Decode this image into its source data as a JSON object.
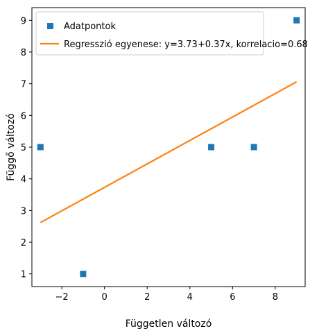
{
  "chart_data": {
    "type": "scatter",
    "title": "",
    "xlabel": "Független változó",
    "ylabel": "Függő változó",
    "xlim": [
      -3.4,
      9.4
    ],
    "ylim": [
      0.6,
      9.4
    ],
    "grid": false,
    "legend_placement": "top-left",
    "x_ticks": [
      {
        "value": -2,
        "label": "−2"
      },
      {
        "value": 0,
        "label": "0"
      },
      {
        "value": 2,
        "label": "2"
      },
      {
        "value": 4,
        "label": "4"
      },
      {
        "value": 6,
        "label": "6"
      },
      {
        "value": 8,
        "label": "8"
      }
    ],
    "y_ticks": [
      {
        "value": 1,
        "label": "1"
      },
      {
        "value": 2,
        "label": "2"
      },
      {
        "value": 3,
        "label": "3"
      },
      {
        "value": 4,
        "label": "4"
      },
      {
        "value": 5,
        "label": "5"
      },
      {
        "value": 6,
        "label": "6"
      },
      {
        "value": 7,
        "label": "7"
      },
      {
        "value": 8,
        "label": "8"
      },
      {
        "value": 9,
        "label": "9"
      }
    ],
    "series": [
      {
        "name": "Adatpontok",
        "kind": "scatter",
        "marker": "square",
        "color": "#1f77b4",
        "points": [
          {
            "x": -3,
            "y": 5
          },
          {
            "x": -1,
            "y": 1
          },
          {
            "x": 5,
            "y": 5
          },
          {
            "x": 7,
            "y": 5
          },
          {
            "x": 9,
            "y": 9
          }
        ]
      },
      {
        "name": "Regresszió egyenese: y=3.73+0.37x, korrelacio=0.68",
        "kind": "line",
        "color": "#ff7f0e",
        "intercept": 3.73,
        "slope": 0.37,
        "x_range": [
          -3,
          9
        ]
      }
    ]
  }
}
